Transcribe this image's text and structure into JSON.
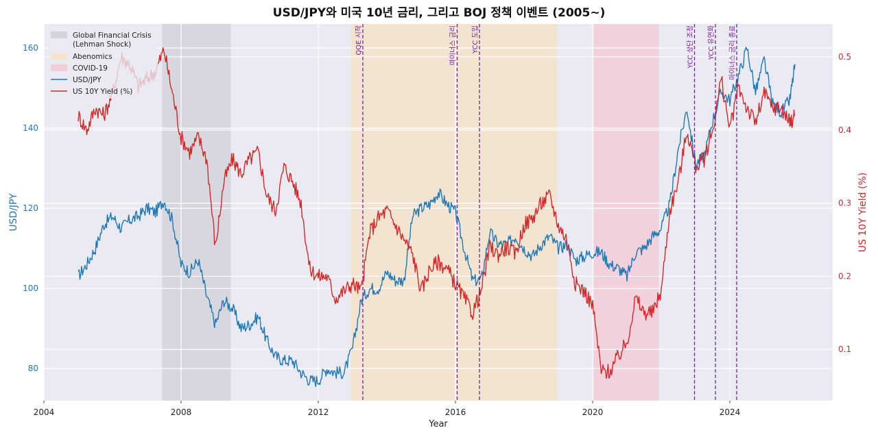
{
  "chart_data": {
    "type": "line",
    "title": "USD/JPY와 미국 10년 금리, 그리고 BOJ 정책 이벤트 (2005~)",
    "xlabel": "Year",
    "ylabel_left": "USD/JPY",
    "ylabel_right": "US 10Y Yield (%)",
    "xlim": [
      2004,
      2027
    ],
    "ylim_left": [
      72,
      166
    ],
    "ylim_right": [
      0.03,
      0.545
    ],
    "x_ticks": [
      2004,
      2008,
      2012,
      2016,
      2020,
      2024
    ],
    "x_tick_labels": [
      "2004",
      "2008",
      "2012",
      "2016",
      "2020",
      "2024"
    ],
    "y_left_ticks": [
      80,
      100,
      120,
      140,
      160
    ],
    "y_left_tick_labels": [
      "80",
      "100",
      "120",
      "140",
      "160"
    ],
    "y_right_ticks": [
      0.1,
      0.2,
      0.3,
      0.4,
      0.5
    ],
    "y_right_tick_labels": [
      "0.1",
      "0.2",
      "0.3",
      "0.4",
      "0.5"
    ],
    "grid": true,
    "legend_position": "top-left",
    "shaded_periods": [
      {
        "label": "Global Financial Crisis (Lehman Shock)",
        "label_lines": [
          "Global Financial Crisis",
          "(Lehman Shock)"
        ],
        "start": 2007.45,
        "end": 2009.45,
        "color": "#d3d3dc"
      },
      {
        "label": "Abenomics",
        "start": 2012.95,
        "end": 2018.97,
        "color": "#f5e3cc"
      },
      {
        "label": "COVID-19",
        "start": 2020.03,
        "end": 2021.93,
        "color": "#f2ccd8"
      }
    ],
    "events": [
      {
        "label": "QQE 시작",
        "x": 2013.3
      },
      {
        "label": "마이너스 금리",
        "x": 2016.05
      },
      {
        "label": "YCC 도입",
        "x": 2016.7
      },
      {
        "label": "YCC 상단 조정",
        "x": 2022.97
      },
      {
        "label": "YCC 유연화",
        "x": 2023.58
      },
      {
        "label": "마이너스 금리 종료",
        "x": 2024.2
      }
    ],
    "series": [
      {
        "name": "USD/JPY",
        "axis": "left",
        "color": "#1f77b4",
        "x": [
          2005.0,
          2005.25,
          2005.5,
          2005.75,
          2006.0,
          2006.25,
          2006.5,
          2006.75,
          2007.0,
          2007.25,
          2007.5,
          2007.75,
          2008.0,
          2008.25,
          2008.5,
          2008.75,
          2009.0,
          2009.25,
          2009.5,
          2009.75,
          2010.0,
          2010.25,
          2010.5,
          2010.75,
          2011.0,
          2011.25,
          2011.5,
          2011.75,
          2012.0,
          2012.25,
          2012.5,
          2012.75,
          2013.0,
          2013.25,
          2013.5,
          2013.75,
          2014.0,
          2014.25,
          2014.5,
          2014.75,
          2015.0,
          2015.25,
          2015.5,
          2015.75,
          2016.0,
          2016.25,
          2016.5,
          2016.75,
          2017.0,
          2017.25,
          2017.5,
          2017.75,
          2018.0,
          2018.25,
          2018.5,
          2018.75,
          2019.0,
          2019.25,
          2019.5,
          2019.75,
          2020.0,
          2020.25,
          2020.5,
          2020.75,
          2021.0,
          2021.25,
          2021.5,
          2021.75,
          2022.0,
          2022.25,
          2022.5,
          2022.75,
          2023.0,
          2023.25,
          2023.5,
          2023.75,
          2024.0,
          2024.25,
          2024.5,
          2024.75,
          2025.0,
          2025.25,
          2025.5,
          2025.75,
          2025.9
        ],
        "values": [
          103,
          106,
          110,
          116,
          118,
          115,
          117,
          118,
          120,
          119,
          122,
          117,
          106,
          104,
          107,
          98,
          91,
          97,
          95,
          90,
          91,
          93,
          87,
          83,
          82,
          82,
          79,
          77,
          77,
          80,
          79,
          79,
          85,
          97,
          100,
          100,
          104,
          102,
          102,
          118,
          120,
          121,
          124,
          121,
          119,
          110,
          102,
          102,
          114,
          111,
          111,
          113,
          110,
          108,
          111,
          113,
          110,
          111,
          107,
          108,
          109,
          109,
          106,
          105,
          103,
          109,
          110,
          113,
          115,
          121,
          135,
          145,
          131,
          133,
          142,
          149,
          147,
          153,
          160,
          149,
          157,
          146,
          144,
          147,
          156
        ]
      },
      {
        "name": "US 10Y Yield (%)",
        "axis": "right",
        "color": "#d62728",
        "x": [
          2005.0,
          2005.25,
          2005.5,
          2005.75,
          2006.0,
          2006.25,
          2006.5,
          2006.75,
          2007.0,
          2007.25,
          2007.5,
          2007.75,
          2008.0,
          2008.25,
          2008.5,
          2008.75,
          2009.0,
          2009.25,
          2009.5,
          2009.75,
          2010.0,
          2010.25,
          2010.5,
          2010.75,
          2011.0,
          2011.25,
          2011.5,
          2011.75,
          2012.0,
          2012.25,
          2012.5,
          2012.75,
          2013.0,
          2013.25,
          2013.5,
          2013.75,
          2014.0,
          2014.25,
          2014.5,
          2014.75,
          2015.0,
          2015.25,
          2015.5,
          2015.75,
          2016.0,
          2016.25,
          2016.5,
          2016.75,
          2017.0,
          2017.25,
          2017.5,
          2017.75,
          2018.0,
          2018.25,
          2018.5,
          2018.75,
          2019.0,
          2019.25,
          2019.5,
          2019.75,
          2020.0,
          2020.25,
          2020.5,
          2020.75,
          2021.0,
          2021.25,
          2021.5,
          2021.75,
          2022.0,
          2022.25,
          2022.5,
          2022.75,
          2023.0,
          2023.25,
          2023.5,
          2023.75,
          2024.0,
          2024.25,
          2024.5,
          2024.75,
          2025.0,
          2025.25,
          2025.5,
          2025.75,
          2025.9
        ],
        "values": [
          0.42,
          0.4,
          0.43,
          0.42,
          0.45,
          0.5,
          0.49,
          0.46,
          0.47,
          0.48,
          0.51,
          0.45,
          0.39,
          0.37,
          0.39,
          0.36,
          0.24,
          0.33,
          0.36,
          0.34,
          0.36,
          0.37,
          0.31,
          0.29,
          0.35,
          0.33,
          0.3,
          0.21,
          0.2,
          0.2,
          0.17,
          0.18,
          0.19,
          0.18,
          0.26,
          0.28,
          0.29,
          0.27,
          0.25,
          0.23,
          0.18,
          0.21,
          0.22,
          0.21,
          0.19,
          0.17,
          0.15,
          0.18,
          0.24,
          0.23,
          0.24,
          0.23,
          0.27,
          0.28,
          0.3,
          0.31,
          0.27,
          0.25,
          0.19,
          0.18,
          0.16,
          0.07,
          0.07,
          0.09,
          0.11,
          0.17,
          0.15,
          0.15,
          0.18,
          0.29,
          0.33,
          0.4,
          0.35,
          0.36,
          0.4,
          0.47,
          0.4,
          0.46,
          0.43,
          0.41,
          0.45,
          0.43,
          0.43,
          0.41,
          0.42
        ]
      }
    ]
  }
}
